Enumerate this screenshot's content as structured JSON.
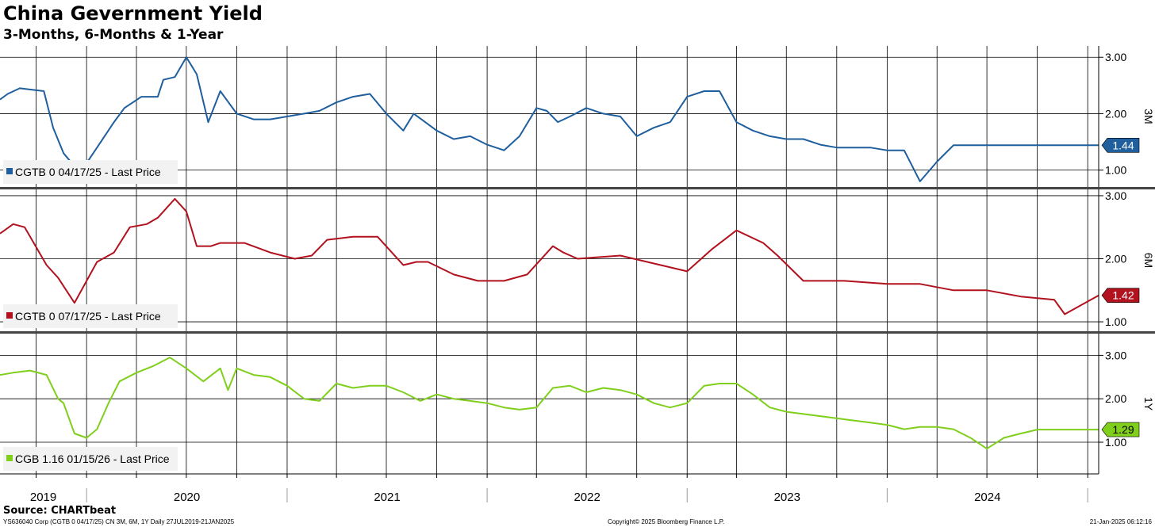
{
  "header": {
    "title": "China Gevernment Yield",
    "subtitle": "3-Months, 6-Months & 1-Year"
  },
  "footer": {
    "source": "Source: CHARTbeat",
    "ticker_info": "YS636040 Corp (CGTB 0 04/17/25) CN 3M, 6M, 1Y  Daily 27JUL2019-21JAN2025",
    "copyright": "Copyright© 2025 Bloomberg Finance L.P.",
    "timestamp": "21-Jan-2025 06:12:16"
  },
  "colors": {
    "three_month": "#1f5f9e",
    "six_month": "#b1121e",
    "one_year": "#7fcf1c",
    "grid": "#000000",
    "divider": "#444444"
  },
  "chart_data": {
    "type": "line",
    "x_axis": {
      "labels": [
        "2019",
        "2020",
        "2021",
        "2022",
        "2023",
        "2024"
      ],
      "start": "2019-07-27",
      "end": "2025-01-21"
    },
    "panels": [
      {
        "panel_label": "3M",
        "legend": "CGTB 0 04/17/25 - Last Price",
        "last_value": "1.44",
        "ylim": [
          0.7,
          3.2
        ],
        "y_ticks": [
          "3.00",
          "2.00",
          "1.00"
        ],
        "series": {
          "x": [
            "2019-07-27",
            "2019-08-10",
            "2019-09-01",
            "2019-10-15",
            "2019-11-01",
            "2019-11-20",
            "2019-12-20",
            "2020-01-20",
            "2020-02-20",
            "2020-03-10",
            "2020-04-10",
            "2020-05-10",
            "2020-05-20",
            "2020-06-10",
            "2020-07-01",
            "2020-07-20",
            "2020-08-10",
            "2020-09-01",
            "2020-10-01",
            "2020-11-01",
            "2020-12-01",
            "2021-01-01",
            "2021-02-01",
            "2021-03-01",
            "2021-04-01",
            "2021-05-01",
            "2021-06-01",
            "2021-07-01",
            "2021-08-01",
            "2021-08-20",
            "2021-09-10",
            "2021-10-01",
            "2021-11-01",
            "2021-12-01",
            "2022-01-01",
            "2022-02-01",
            "2022-03-01",
            "2022-04-01",
            "2022-04-20",
            "2022-05-10",
            "2022-06-01",
            "2022-07-01",
            "2022-08-01",
            "2022-09-01",
            "2022-10-01",
            "2022-11-01",
            "2022-12-01",
            "2023-01-01",
            "2023-02-01",
            "2023-03-01",
            "2023-04-01",
            "2023-05-01",
            "2023-06-01",
            "2023-07-01",
            "2023-08-01",
            "2023-09-01",
            "2023-10-01",
            "2023-11-01",
            "2023-12-01",
            "2024-01-01",
            "2024-02-01",
            "2024-03-01",
            "2024-04-01",
            "2024-05-01",
            "2024-06-01",
            "2024-07-01",
            "2024-08-01",
            "2024-09-01",
            "2024-10-01",
            "2024-11-01",
            "2024-11-20",
            "2024-12-10",
            "2025-01-01",
            "2025-01-21"
          ],
          "values": [
            2.25,
            2.35,
            2.45,
            2.4,
            1.75,
            1.3,
            0.95,
            1.4,
            1.85,
            2.1,
            2.3,
            2.3,
            2.6,
            2.65,
            3.0,
            2.7,
            1.85,
            2.4,
            2.0,
            1.9,
            1.9,
            1.95,
            2.0,
            2.05,
            2.2,
            2.3,
            2.35,
            2.0,
            1.7,
            2.0,
            1.85,
            1.7,
            1.55,
            1.6,
            1.45,
            1.35,
            1.6,
            2.1,
            2.05,
            1.85,
            1.95,
            2.1,
            2.0,
            1.95,
            1.6,
            1.75,
            1.85,
            2.3,
            2.4,
            2.4,
            1.85,
            1.7,
            1.6,
            1.55,
            1.55,
            1.45,
            1.4,
            1.4,
            1.4,
            1.35,
            1.35,
            0.8,
            1.15,
            1.44,
            1.44,
            1.44,
            1.44,
            1.44,
            1.44,
            1.44,
            1.44,
            1.44,
            1.44,
            1.44
          ]
        }
      },
      {
        "panel_label": "6M",
        "legend": "CGTB 0 07/17/25 - Last Price",
        "last_value": "1.42",
        "ylim": [
          0.85,
          3.1
        ],
        "y_ticks": [
          "3.00",
          "2.00",
          "1.00"
        ],
        "series": {
          "x": [
            "2019-07-27",
            "2019-08-20",
            "2019-09-10",
            "2019-10-20",
            "2019-11-10",
            "2019-12-10",
            "2020-01-20",
            "2020-02-10",
            "2020-02-20",
            "2020-03-20",
            "2020-04-20",
            "2020-05-10",
            "2020-06-10",
            "2020-07-01",
            "2020-07-20",
            "2020-08-15",
            "2020-09-01",
            "2020-10-15",
            "2020-12-01",
            "2021-01-15",
            "2021-02-15",
            "2021-03-15",
            "2021-05-01",
            "2021-06-15",
            "2021-08-01",
            "2021-08-25",
            "2021-09-15",
            "2021-11-01",
            "2021-12-15",
            "2022-02-01",
            "2022-03-15",
            "2022-05-01",
            "2022-05-20",
            "2022-06-15",
            "2022-09-01",
            "2023-01-01",
            "2023-02-15",
            "2023-04-01",
            "2023-05-20",
            "2023-06-15",
            "2023-08-01",
            "2023-10-15",
            "2024-01-01",
            "2024-03-01",
            "2024-05-01",
            "2024-07-01",
            "2024-09-01",
            "2024-11-01",
            "2024-11-20",
            "2025-01-21"
          ],
          "values": [
            2.4,
            2.55,
            2.5,
            1.9,
            1.7,
            1.3,
            1.95,
            2.05,
            2.1,
            2.5,
            2.55,
            2.65,
            2.95,
            2.75,
            2.2,
            2.2,
            2.25,
            2.25,
            2.1,
            2.0,
            2.05,
            2.3,
            2.35,
            2.35,
            1.9,
            1.95,
            1.95,
            1.75,
            1.65,
            1.65,
            1.75,
            2.2,
            2.1,
            2.0,
            2.05,
            1.8,
            2.15,
            2.45,
            2.25,
            2.05,
            1.65,
            1.65,
            1.6,
            1.6,
            1.5,
            1.5,
            1.4,
            1.35,
            1.12,
            1.42
          ]
        }
      },
      {
        "panel_label": "1Y",
        "legend": "CGB 1.16 01/15/26 - Last Price",
        "last_value": "1.29",
        "ylim": [
          0.27,
          3.5
        ],
        "y_ticks": [
          "3.00",
          "2.00",
          "1.00"
        ],
        "series": {
          "x": [
            "2019-07-27",
            "2019-08-20",
            "2019-09-20",
            "2019-10-20",
            "2019-11-10",
            "2019-11-20",
            "2019-12-10",
            "2020-01-01",
            "2020-01-20",
            "2020-02-10",
            "2020-03-01",
            "2020-04-01",
            "2020-05-01",
            "2020-06-01",
            "2020-07-01",
            "2020-08-01",
            "2020-09-01",
            "2020-09-15",
            "2020-10-01",
            "2020-11-01",
            "2020-12-01",
            "2021-01-01",
            "2021-02-01",
            "2021-03-01",
            "2021-04-01",
            "2021-05-01",
            "2021-06-01",
            "2021-07-01",
            "2021-08-01",
            "2021-09-01",
            "2021-10-01",
            "2021-11-01",
            "2021-12-01",
            "2022-01-01",
            "2022-02-01",
            "2022-03-01",
            "2022-04-01",
            "2022-05-01",
            "2022-06-01",
            "2022-07-01",
            "2022-08-01",
            "2022-09-01",
            "2022-10-01",
            "2022-11-01",
            "2022-12-01",
            "2023-01-01",
            "2023-02-01",
            "2023-03-01",
            "2023-04-01",
            "2023-05-01",
            "2023-06-01",
            "2023-07-01",
            "2023-08-01",
            "2023-09-01",
            "2023-10-01",
            "2023-11-01",
            "2023-12-01",
            "2024-01-01",
            "2024-02-01",
            "2024-03-01",
            "2024-04-01",
            "2024-05-01",
            "2024-06-01",
            "2024-07-01",
            "2024-08-01",
            "2024-09-01",
            "2024-10-01",
            "2024-10-20",
            "2024-11-10",
            "2024-12-01",
            "2025-01-21"
          ],
          "values": [
            2.55,
            2.6,
            2.65,
            2.55,
            2.0,
            1.9,
            1.2,
            1.1,
            1.3,
            1.9,
            2.4,
            2.6,
            2.75,
            2.95,
            2.7,
            2.4,
            2.7,
            2.2,
            2.7,
            2.55,
            2.5,
            2.3,
            2.0,
            1.95,
            2.35,
            2.25,
            2.3,
            2.3,
            2.15,
            1.95,
            2.1,
            2.0,
            1.95,
            1.9,
            1.8,
            1.75,
            1.8,
            2.25,
            2.3,
            2.15,
            2.25,
            2.2,
            2.1,
            1.9,
            1.8,
            1.9,
            2.3,
            2.35,
            2.35,
            2.1,
            1.8,
            1.7,
            1.65,
            1.6,
            1.55,
            1.5,
            1.45,
            1.4,
            1.3,
            1.35,
            1.35,
            1.3,
            1.1,
            0.85,
            1.1,
            1.2,
            1.29,
            1.29,
            1.29,
            1.29,
            1.29
          ]
        }
      }
    ]
  }
}
